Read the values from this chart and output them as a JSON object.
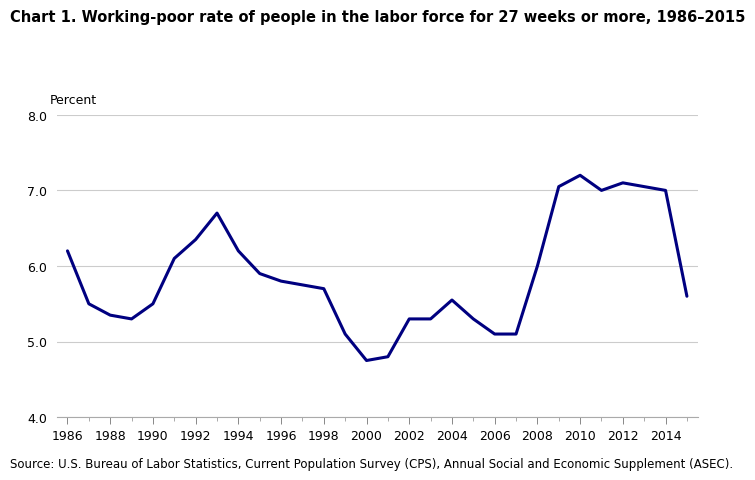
{
  "title": "Chart 1. Working-poor rate of people in the labor force for 27 weeks or more, 1986–2015",
  "percent_label": "Percent",
  "source": "Source: U.S. Bureau of Labor Statistics, Current Population Survey (CPS), Annual Social and Economic Supplement (ASEC).",
  "years": [
    1986,
    1987,
    1988,
    1989,
    1990,
    1991,
    1992,
    1993,
    1994,
    1995,
    1996,
    1997,
    1998,
    1999,
    2000,
    2001,
    2002,
    2003,
    2004,
    2005,
    2006,
    2007,
    2008,
    2009,
    2010,
    2011,
    2012,
    2013,
    2014,
    2015
  ],
  "values": [
    6.2,
    5.5,
    5.35,
    5.3,
    5.5,
    6.1,
    6.35,
    6.7,
    6.2,
    5.9,
    5.8,
    5.75,
    5.7,
    5.1,
    4.75,
    4.8,
    5.3,
    5.3,
    5.55,
    5.3,
    5.1,
    5.1,
    6.0,
    7.05,
    7.2,
    7.0,
    7.1,
    7.05,
    7.0,
    5.6
  ],
  "line_color": "#000080",
  "line_width": 2.2,
  "ylim": [
    4.0,
    8.0
  ],
  "yticks": [
    4.0,
    5.0,
    6.0,
    7.0,
    8.0
  ],
  "xtick_labels": [
    "1986",
    "1988",
    "1990",
    "1992",
    "1994",
    "1996",
    "1998",
    "2000",
    "2002",
    "2004",
    "2006",
    "2008",
    "2010",
    "2012",
    "2014"
  ],
  "xtick_years": [
    1986,
    1988,
    1990,
    1992,
    1994,
    1996,
    1998,
    2000,
    2002,
    2004,
    2006,
    2008,
    2010,
    2012,
    2014
  ],
  "grid_color": "#cccccc",
  "background_color": "#ffffff",
  "title_fontsize": 10.5,
  "tick_fontsize": 9,
  "source_fontsize": 8.5,
  "percent_fontsize": 9
}
